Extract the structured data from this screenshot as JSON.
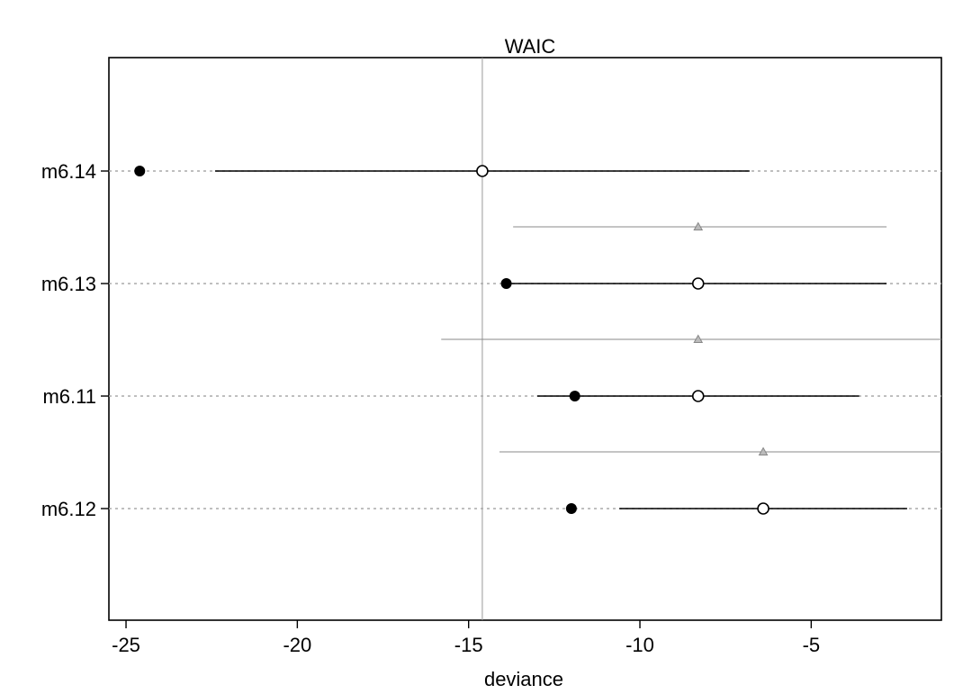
{
  "chart_data": {
    "type": "dot-interval",
    "title": "WAIC",
    "xlabel": "deviance",
    "ylabel": "",
    "xlim": [
      -25.5,
      -1.2
    ],
    "x_ticks": [
      -25,
      -20,
      -15,
      -10,
      -5
    ],
    "x_tick_labels": [
      "-25",
      "-20",
      "-15",
      "-10",
      "-5"
    ],
    "reference_line": -14.6,
    "grid": false,
    "legend": null,
    "models": [
      {
        "name": "m6.14",
        "in_sample": -24.6,
        "waic": -14.6,
        "interval": [
          -22.4,
          -6.8
        ],
        "dse": null,
        "dse_interval": null
      },
      {
        "name": "m6.13",
        "in_sample": -13.9,
        "waic": -8.3,
        "interval": [
          -13.9,
          -2.8
        ],
        "dse": -8.3,
        "dse_interval": [
          -13.7,
          -2.8
        ]
      },
      {
        "name": "m6.11",
        "in_sample": -11.9,
        "waic": -8.3,
        "interval": [
          -13.0,
          -3.6
        ],
        "dse": -8.3,
        "dse_interval": [
          -15.8,
          -1.2
        ]
      },
      {
        "name": "m6.12",
        "in_sample": -12.0,
        "waic": -6.4,
        "interval": [
          -10.6,
          -2.2
        ],
        "dse": -6.4,
        "dse_interval": [
          -14.1,
          -1.2
        ]
      }
    ],
    "colors": {
      "point": "#000000",
      "interval": "#000000",
      "dse": "#888888",
      "guide": "#aaaaaa",
      "reference": "#999999"
    }
  }
}
